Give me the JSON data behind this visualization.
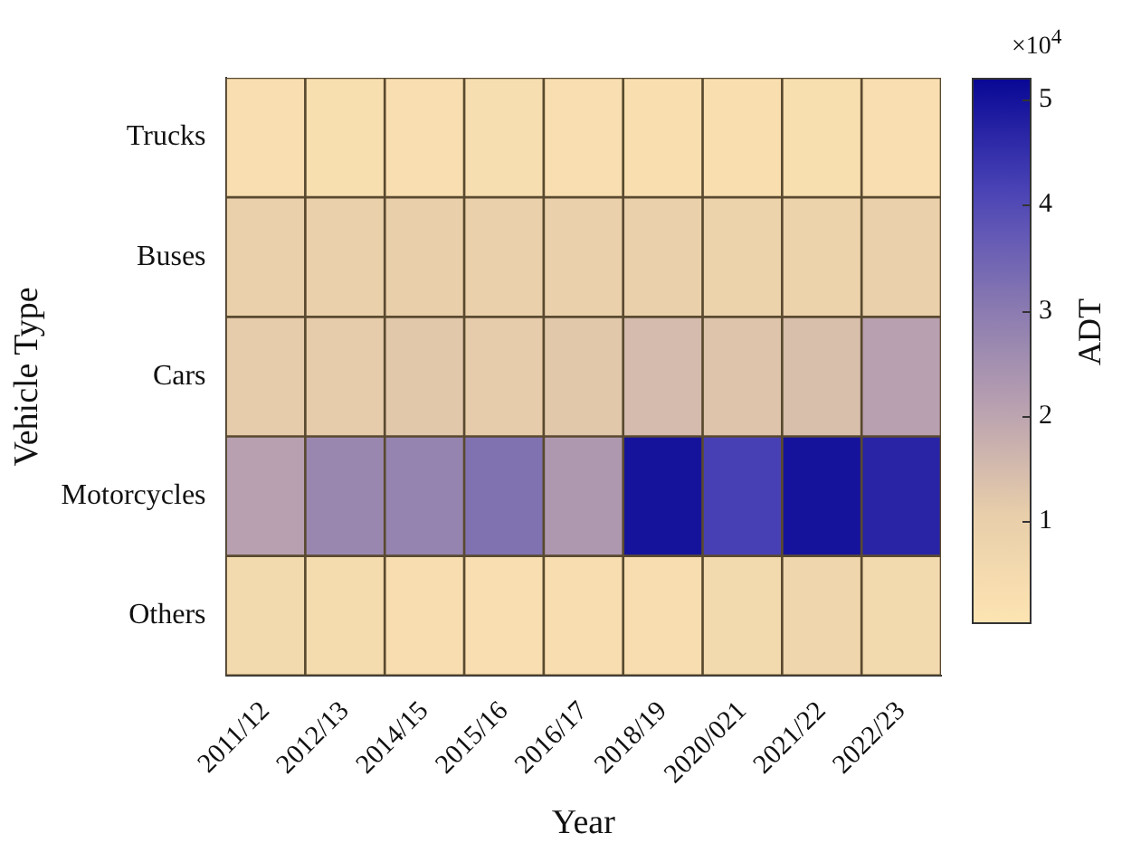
{
  "chart_data": {
    "type": "heatmap",
    "xlabel": "Year",
    "ylabel": "Vehicle Type",
    "clabel": "ADT",
    "categories": [
      "2011/12",
      "2012/13",
      "2014/15",
      "2015/16",
      "2016/17",
      "2018/19",
      "2020/021",
      "2021/22",
      "2022/23"
    ],
    "y_categories": [
      "Trucks",
      "Buses",
      "Cars",
      "Motorcycles",
      "Others"
    ],
    "cells": [
      [
        0.3,
        0.28,
        0.3,
        0.32,
        0.3,
        0.25,
        0.25,
        0.28,
        0.3
      ],
      [
        0.9,
        0.9,
        1.0,
        0.9,
        0.9,
        0.9,
        0.85,
        0.85,
        0.95
      ],
      [
        1.1,
        1.1,
        1.2,
        1.1,
        1.2,
        1.5,
        1.3,
        1.4,
        2.1
      ],
      [
        2.1,
        2.7,
        2.8,
        3.2,
        2.3,
        5.0,
        4.2,
        5.0,
        4.7
      ],
      [
        0.5,
        0.4,
        0.35,
        0.3,
        0.35,
        0.35,
        0.5,
        0.7,
        0.5
      ]
    ],
    "clim": [
      0.03,
      5.2
    ],
    "cticks": [
      1,
      2,
      3,
      4,
      5
    ],
    "annotations": [
      "×10$^{4}$"
    ]
  }
}
